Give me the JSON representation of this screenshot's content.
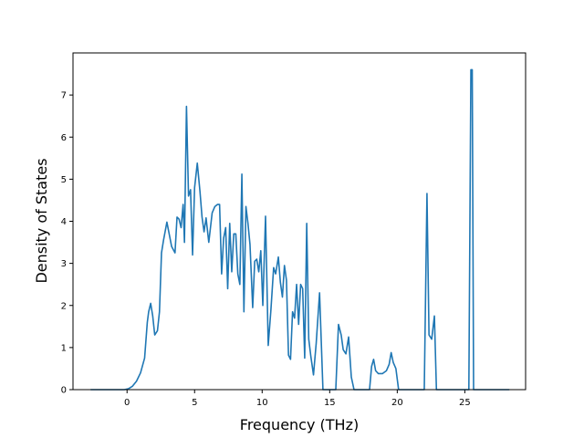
{
  "chart_data": {
    "type": "line",
    "title": "",
    "xlabel": "Frequency (THz)",
    "ylabel": "Density of States",
    "xlim": [
      -4.0,
      29.5
    ],
    "ylim": [
      0,
      8.0
    ],
    "xticks": [
      0,
      5,
      10,
      15,
      20,
      25
    ],
    "yticks": [
      0,
      1,
      2,
      3,
      4,
      5,
      6,
      7
    ],
    "grid": false,
    "legend": "none",
    "series": [
      {
        "color": "#1f77b4",
        "x": [
          -2.7,
          -0.2,
          0.1,
          0.4,
          0.7,
          1.0,
          1.3,
          1.5,
          1.6,
          1.75,
          1.9,
          2.05,
          2.25,
          2.4,
          2.55,
          2.7,
          2.95,
          3.3,
          3.55,
          3.7,
          3.85,
          4.0,
          4.15,
          4.25,
          4.4,
          4.55,
          4.7,
          4.85,
          5.0,
          5.2,
          5.4,
          5.55,
          5.7,
          5.85,
          6.05,
          6.3,
          6.5,
          6.7,
          6.85,
          7.0,
          7.15,
          7.3,
          7.45,
          7.6,
          7.75,
          7.9,
          8.05,
          8.2,
          8.35,
          8.5,
          8.65,
          8.8,
          8.95,
          9.1,
          9.3,
          9.45,
          9.6,
          9.75,
          9.9,
          10.05,
          10.25,
          10.45,
          10.65,
          10.85,
          11.0,
          11.2,
          11.35,
          11.5,
          11.65,
          11.8,
          11.95,
          12.1,
          12.25,
          12.4,
          12.55,
          12.7,
          12.85,
          13.0,
          13.15,
          13.3,
          13.45,
          13.6,
          13.8,
          14.0,
          14.25,
          14.5,
          15.45,
          15.65,
          15.85,
          16.0,
          16.2,
          16.4,
          16.6,
          16.8,
          17.95,
          18.1,
          18.25,
          18.4,
          18.6,
          18.9,
          19.2,
          19.4,
          19.55,
          19.7,
          19.9,
          20.1,
          22.0,
          22.2,
          22.35,
          22.55,
          22.75,
          22.9,
          23.1,
          25.3,
          25.45,
          25.55,
          25.65,
          25.8,
          28.3
        ],
        "y": [
          0.0,
          0.0,
          0.02,
          0.08,
          0.2,
          0.4,
          0.75,
          1.6,
          1.85,
          2.05,
          1.75,
          1.3,
          1.4,
          1.85,
          3.25,
          3.55,
          3.98,
          3.4,
          3.25,
          4.1,
          4.05,
          3.85,
          4.4,
          3.5,
          6.73,
          4.6,
          4.75,
          3.2,
          4.8,
          5.38,
          4.7,
          4.1,
          3.75,
          4.08,
          3.5,
          4.2,
          4.35,
          4.4,
          4.4,
          2.75,
          3.6,
          3.85,
          2.4,
          3.95,
          2.8,
          3.7,
          3.7,
          2.75,
          2.5,
          5.12,
          1.85,
          4.35,
          3.95,
          3.45,
          1.95,
          3.05,
          3.1,
          2.8,
          3.3,
          2.0,
          4.12,
          1.05,
          1.9,
          2.9,
          2.75,
          3.15,
          2.55,
          2.2,
          2.95,
          2.6,
          0.82,
          0.72,
          1.85,
          1.7,
          2.5,
          1.55,
          2.5,
          2.4,
          0.75,
          3.95,
          1.2,
          0.8,
          0.35,
          1.1,
          2.3,
          0.0,
          0.0,
          1.55,
          1.3,
          0.95,
          0.85,
          1.25,
          0.3,
          0.0,
          0.0,
          0.55,
          0.72,
          0.45,
          0.38,
          0.38,
          0.45,
          0.6,
          0.88,
          0.65,
          0.5,
          0.0,
          0.0,
          4.66,
          1.3,
          1.2,
          1.75,
          0.0,
          0.0,
          0.0,
          7.6,
          7.6,
          0.0,
          0.0,
          0.0
        ]
      }
    ]
  }
}
